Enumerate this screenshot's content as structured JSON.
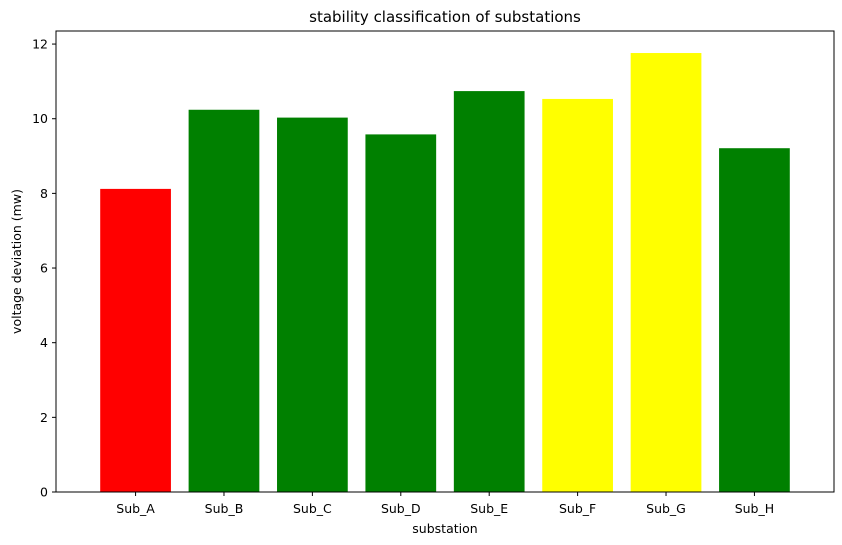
{
  "chart_data": {
    "type": "bar",
    "title": "stability classification of substations",
    "xlabel": "substation",
    "ylabel": "voltage deviation (mw)",
    "categories": [
      "Sub_A",
      "Sub_B",
      "Sub_C",
      "Sub_D",
      "Sub_E",
      "Sub_F",
      "Sub_G",
      "Sub_H"
    ],
    "values": [
      8.12,
      10.24,
      10.03,
      9.58,
      10.74,
      10.53,
      11.76,
      9.21
    ],
    "bar_colors": [
      "#ff0000",
      "#008000",
      "#008000",
      "#008000",
      "#008000",
      "#ffff00",
      "#ffff00",
      "#008000"
    ],
    "ylim": [
      0,
      12.35
    ],
    "yticks": [
      0,
      2,
      4,
      6,
      8,
      10,
      12
    ],
    "grid": false,
    "legend": "none"
  }
}
